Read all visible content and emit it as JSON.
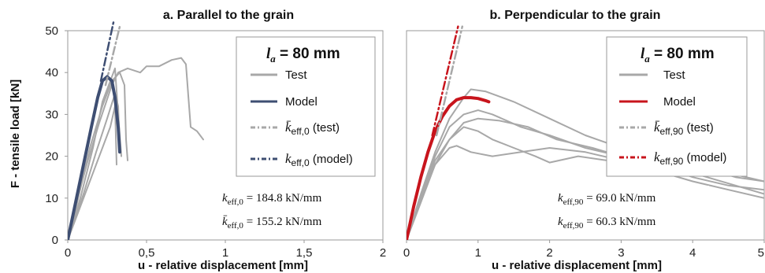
{
  "y_axis_label": "F - tensile load [kN]",
  "colors": {
    "test": "#a8a8a8",
    "model_a": "#3e4e72",
    "model_b": "#c8141c",
    "frame": "#9a9a9a",
    "text": "#111111"
  },
  "chart_data": [
    {
      "type": "line",
      "title": "a. Parallel to the grain",
      "xlabel": "u - relative displacement [mm]",
      "ylabel": "F - tensile load [kN]",
      "xlim": [
        0,
        2
      ],
      "ylim": [
        0,
        50
      ],
      "x_ticks": [
        "0",
        "0,5",
        "1",
        "1,5",
        "2"
      ],
      "x_tick_values": [
        0,
        0.5,
        1,
        1.5,
        2
      ],
      "y_ticks": [
        "0",
        "10",
        "20",
        "30",
        "40",
        "50"
      ],
      "y_tick_values": [
        0,
        10,
        20,
        30,
        40,
        50
      ],
      "grid": false,
      "legend_position": "top-right",
      "legend_title_label": "l",
      "legend_title_sub": "a",
      "legend_title_value": " = 80 mm",
      "legend": [
        {
          "label": "Test",
          "style": "solid",
          "color": "#a8a8a8"
        },
        {
          "label": "Model",
          "style": "solid",
          "color": "#3e4e72"
        },
        {
          "label_main": "k̄",
          "label_sub": "eff,0",
          "label_suffix": " (test)",
          "style": "dashdot",
          "color": "#a8a8a8"
        },
        {
          "label_main": "k",
          "label_sub": "eff,0",
          "label_suffix": " (model)",
          "style": "dashdot",
          "color": "#3e4e72"
        }
      ],
      "annotations": [
        {
          "symbol": "k",
          "sub": "eff,0",
          "value": " = 184.8 kN/mm"
        },
        {
          "symbol": "k̄",
          "sub": "eff,0",
          "value": " = 155.2 kN/mm"
        }
      ],
      "series": [
        {
          "role": "test",
          "x": [
            0,
            0.05,
            0.12,
            0.2,
            0.28,
            0.32,
            0.38,
            0.46,
            0.5,
            0.58,
            0.66,
            0.72,
            0.75,
            0.78,
            0.82,
            0.86
          ],
          "y": [
            0,
            8,
            18,
            28,
            37,
            40,
            41,
            40,
            41.5,
            41.5,
            43,
            43.5,
            42,
            27,
            26,
            24
          ]
        },
        {
          "role": "test",
          "x": [
            0,
            0.06,
            0.14,
            0.22,
            0.28,
            0.33,
            0.36,
            0.37,
            0.38
          ],
          "y": [
            0,
            9,
            22,
            32,
            38,
            40,
            37,
            24,
            19
          ]
        },
        {
          "role": "test",
          "x": [
            0,
            0.08,
            0.16,
            0.22,
            0.27,
            0.3,
            0.32,
            0.34
          ],
          "y": [
            0,
            10,
            22,
            33,
            38,
            41,
            30,
            20
          ]
        },
        {
          "role": "test",
          "x": [
            0,
            0.1,
            0.18,
            0.25,
            0.3,
            0.32,
            0.33
          ],
          "y": [
            0,
            11,
            21,
            29,
            35,
            32,
            22
          ]
        },
        {
          "role": "test",
          "x": [
            0,
            0.12,
            0.2,
            0.27,
            0.3,
            0.31
          ],
          "y": [
            0,
            12,
            20,
            27,
            32,
            18
          ]
        },
        {
          "role": "model",
          "x": [
            0,
            0.05,
            0.1,
            0.15,
            0.19,
            0.22,
            0.25,
            0.28,
            0.3,
            0.32,
            0.33
          ],
          "y": [
            0,
            9,
            18,
            27,
            34,
            38,
            39,
            38,
            34,
            27,
            21
          ]
        },
        {
          "role": "k_test",
          "x": [
            0.24,
            0.33
          ],
          "y": [
            37,
            51
          ]
        },
        {
          "role": "k_model",
          "x": [
            0.21,
            0.29
          ],
          "y": [
            38,
            52
          ]
        }
      ]
    },
    {
      "type": "line",
      "title": "b. Perpendicular to the grain",
      "xlabel": "u - relative displacement [mm]",
      "ylabel": "",
      "xlim": [
        0,
        5
      ],
      "ylim": [
        0,
        50
      ],
      "x_ticks": [
        "0",
        "1",
        "2",
        "3",
        "4",
        "5"
      ],
      "x_tick_values": [
        0,
        1,
        2,
        3,
        4,
        5
      ],
      "grid": false,
      "legend_position": "top-right",
      "legend_title_label": "l",
      "legend_title_sub": "a",
      "legend_title_value": " = 80 mm",
      "legend": [
        {
          "label": "Test",
          "style": "solid",
          "color": "#a8a8a8"
        },
        {
          "label": "Model",
          "style": "solid",
          "color": "#c8141c"
        },
        {
          "label_main": "k̄",
          "label_sub": "eff,90",
          "label_suffix": " (test)",
          "style": "dashdot",
          "color": "#a8a8a8"
        },
        {
          "label_main": "k",
          "label_sub": "eff,90",
          "label_suffix": " (model)",
          "style": "dashdot",
          "color": "#c8141c"
        }
      ],
      "annotations": [
        {
          "symbol": "k",
          "sub": "eff,90",
          "value": " = 69.0 kN/mm"
        },
        {
          "symbol": "k",
          "sub": "eff,90",
          "value": " = 60.3 kN/mm"
        }
      ],
      "series": [
        {
          "role": "test",
          "x": [
            0,
            0.2,
            0.4,
            0.6,
            0.8,
            0.9,
            1.1,
            1.5,
            2.0,
            2.5,
            3.0,
            3.5,
            4.0,
            4.5,
            5.0
          ],
          "y": [
            0,
            11,
            21,
            29,
            34,
            36,
            35.5,
            33,
            29,
            25,
            22,
            20,
            18,
            16,
            14
          ]
        },
        {
          "role": "test",
          "x": [
            0,
            0.2,
            0.4,
            0.6,
            0.8,
            1.0,
            1.2,
            1.6,
            2.0,
            2.5,
            3.0,
            3.5,
            4.0,
            4.5,
            5.0
          ],
          "y": [
            0,
            10,
            20,
            27,
            30,
            31,
            30,
            27,
            25,
            22,
            20,
            18,
            15,
            13,
            12
          ]
        },
        {
          "role": "test",
          "x": [
            0,
            0.2,
            0.4,
            0.6,
            0.8,
            1.0,
            1.3,
            1.7,
            2.1,
            2.6,
            3.0,
            3.6,
            4.2,
            4.6,
            5.0
          ],
          "y": [
            0,
            9,
            18,
            24,
            28,
            29,
            28.5,
            27,
            24,
            22,
            20,
            18,
            15,
            13,
            11
          ]
        },
        {
          "role": "test",
          "x": [
            0,
            0.2,
            0.4,
            0.6,
            0.8,
            1.0,
            1.2,
            1.5,
            1.8,
            2.0,
            2.4,
            2.8,
            3.2,
            3.6,
            4.0,
            4.5,
            5.0
          ],
          "y": [
            0,
            10,
            19,
            24,
            27,
            26,
            24,
            22,
            20,
            18.5,
            20,
            19,
            17,
            16,
            14,
            12,
            10
          ]
        },
        {
          "role": "test",
          "x": [
            0,
            0.2,
            0.4,
            0.6,
            0.7,
            0.9,
            1.2,
            1.6,
            2.0,
            2.5,
            3.0,
            3.6,
            4.2,
            4.6,
            5.0
          ],
          "y": [
            0,
            10,
            18,
            22,
            22.5,
            21,
            20,
            21,
            22,
            21,
            19,
            18,
            17,
            15,
            14
          ]
        },
        {
          "role": "model",
          "x": [
            0,
            0.1,
            0.2,
            0.3,
            0.4,
            0.5,
            0.6,
            0.7,
            0.8,
            0.9,
            1.0,
            1.1,
            1.15
          ],
          "y": [
            0,
            8,
            15,
            21,
            26,
            29.5,
            32,
            33.5,
            34,
            34,
            33.8,
            33.3,
            33
          ]
        },
        {
          "role": "k_test",
          "x": [
            0.42,
            0.78
          ],
          "y": [
            25,
            51
          ]
        },
        {
          "role": "k_model",
          "x": [
            0.36,
            0.72
          ],
          "y": [
            25,
            51
          ]
        }
      ]
    }
  ]
}
